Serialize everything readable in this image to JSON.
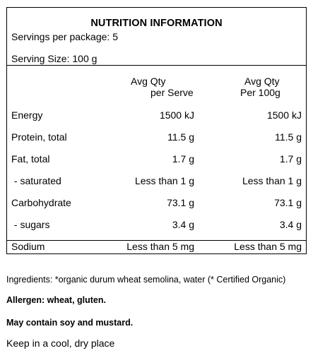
{
  "panel": {
    "title": "NUTRITION INFORMATION",
    "servings_per_package": "Servings per package: 5",
    "serving_size": "Serving Size: 100 g",
    "columns": {
      "per_serve_line1": "Avg Qty",
      "per_serve_line2": "per Serve",
      "per_100g_line1": "Avg Qty",
      "per_100g_line2": "Per 100g"
    },
    "rows": [
      {
        "name": "Energy",
        "per_serve": "1500 kJ",
        "per_100g": "1500 kJ"
      },
      {
        "name": "Protein, total",
        "per_serve": "11.5 g",
        "per_100g": "11.5 g"
      },
      {
        "name": "Fat, total",
        "per_serve": "1.7 g",
        "per_100g": "1.7 g"
      },
      {
        "name": " - saturated",
        "per_serve": "Less than 1 g",
        "per_100g": "Less than 1 g"
      },
      {
        "name": "Carbohydrate",
        "per_serve": "73.1 g",
        "per_100g": "73.1 g"
      },
      {
        "name": " - sugars",
        "per_serve": "3.4 g",
        "per_100g": "3.4 g"
      },
      {
        "name": "Sodium",
        "per_serve": "Less than 5 mg",
        "per_100g": "Less than 5 mg"
      }
    ]
  },
  "ingredients": "Ingredients: *organic durum wheat semolina, water (* Certified Organic)",
  "allergen": "Allergen: wheat, gluten.",
  "may_contain": "May contain soy and mustard.",
  "storage": "Keep in a cool, dry place"
}
